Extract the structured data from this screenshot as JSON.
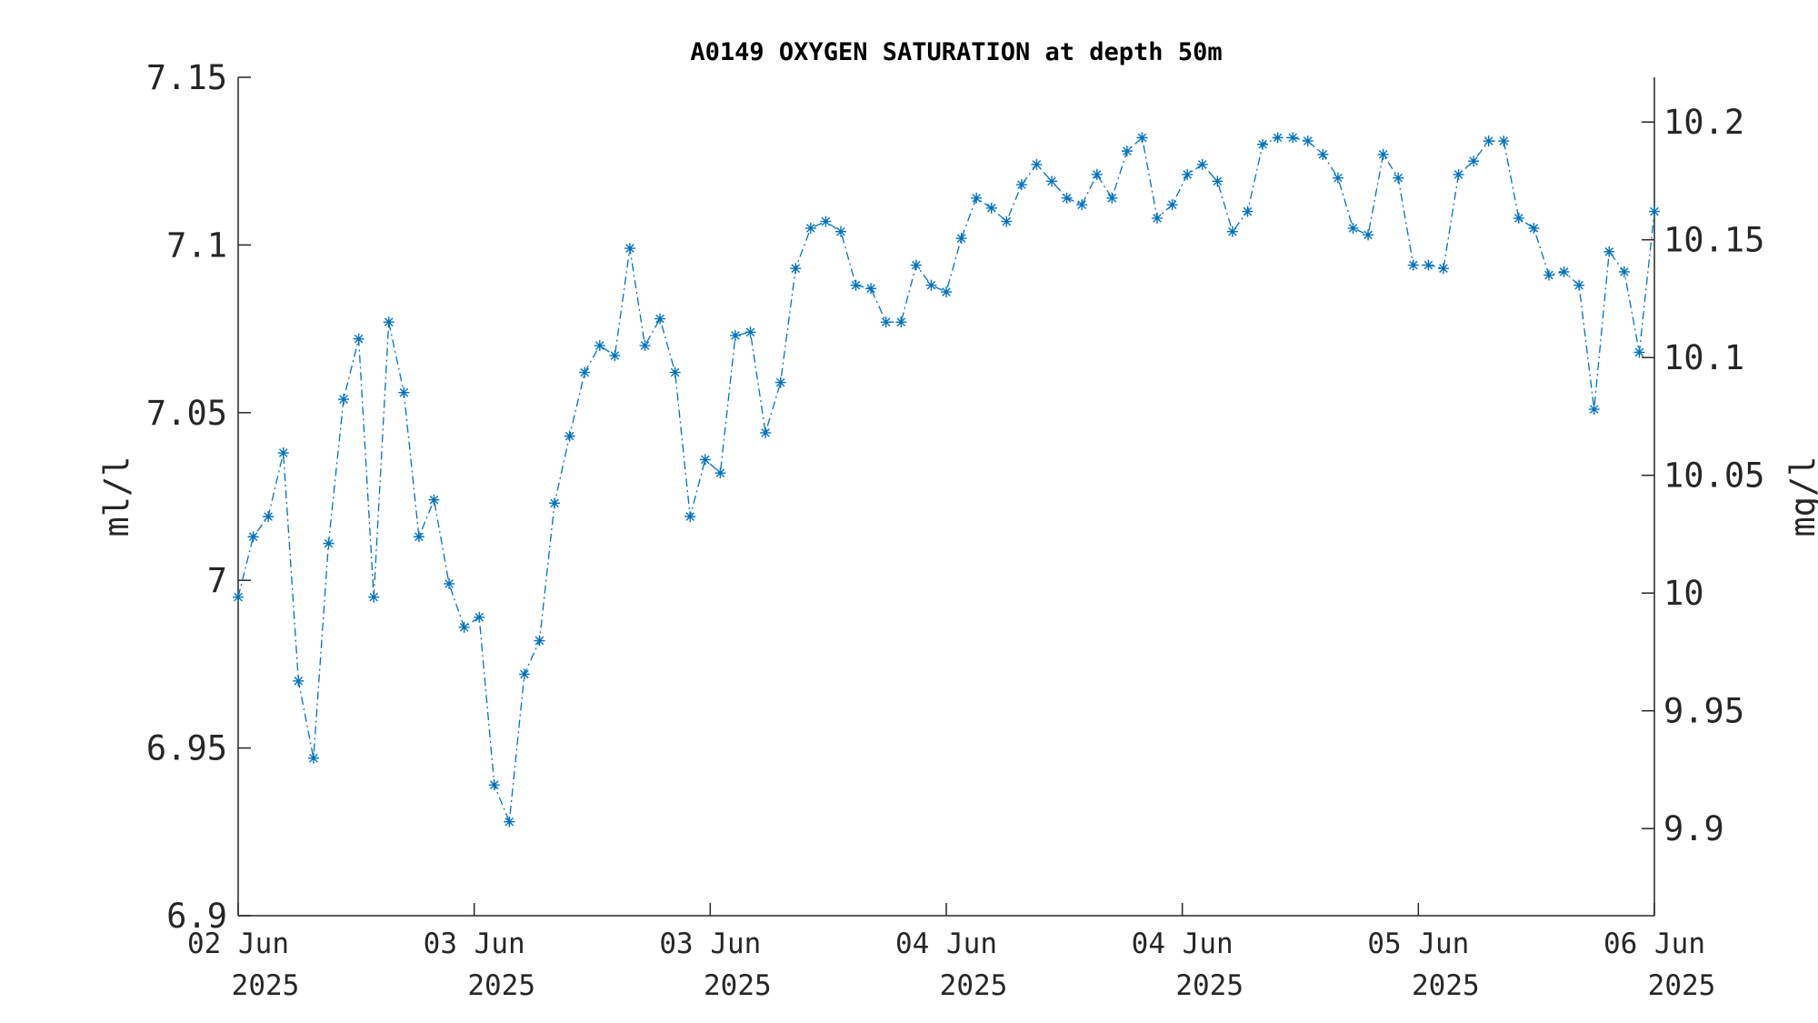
{
  "chart_data": {
    "type": "line",
    "title": "A0149 OXYGEN SATURATION at depth 50m",
    "ylabel_left": "ml/l",
    "ylabel_right": "mg/l",
    "ylim_left": [
      6.9,
      7.15
    ],
    "ylim_right": [
      9.863,
      10.219
    ],
    "yticks_left": [
      "6.9",
      "6.95",
      "7",
      "7.05",
      "7.1",
      "7.15"
    ],
    "yticks_right": [
      "9.9",
      "9.95",
      "10",
      "10.05",
      "10.1",
      "10.15",
      "10.2"
    ],
    "xticks": [
      {
        "line1": "02 Jun",
        "line2": "2025"
      },
      {
        "line1": "03 Jun",
        "line2": "2025"
      },
      {
        "line1": "03 Jun",
        "line2": "2025"
      },
      {
        "line1": "04 Jun",
        "line2": "2025"
      },
      {
        "line1": "04 Jun",
        "line2": "2025"
      },
      {
        "line1": "05 Jun",
        "line2": "2025"
      },
      {
        "line1": "06 Jun",
        "line2": "2025"
      }
    ],
    "line_color": "#0072BD",
    "marker": "asterisk",
    "line_style": "dash-dot",
    "series": [
      {
        "values": [
          6.995,
          7.013,
          7.019,
          7.038,
          6.97,
          6.947,
          7.011,
          7.054,
          7.072,
          6.995,
          7.077,
          7.056,
          7.013,
          7.024,
          6.999,
          6.986,
          6.989,
          6.939,
          6.928,
          6.972,
          6.982,
          7.023,
          7.043,
          7.062,
          7.07,
          7.067,
          7.099,
          7.07,
          7.078,
          7.062,
          7.019,
          7.036,
          7.032,
          7.073,
          7.074,
          7.044,
          7.059,
          7.093,
          7.105,
          7.107,
          7.104,
          7.088,
          7.087,
          7.077,
          7.077,
          7.094,
          7.088,
          7.086,
          7.102,
          7.114,
          7.111,
          7.107,
          7.118,
          7.124,
          7.119,
          7.114,
          7.112,
          7.121,
          7.114,
          7.128,
          7.132,
          7.108,
          7.112,
          7.121,
          7.124,
          7.119,
          7.104,
          7.11,
          7.13,
          7.132,
          7.132,
          7.131,
          7.127,
          7.12,
          7.105,
          7.103,
          7.127,
          7.12,
          7.094,
          7.094,
          7.093,
          7.121,
          7.125,
          7.131,
          7.131,
          7.108,
          7.105,
          7.091,
          7.092,
          7.088,
          7.051,
          7.098,
          7.092,
          7.068,
          7.11
        ]
      }
    ]
  }
}
